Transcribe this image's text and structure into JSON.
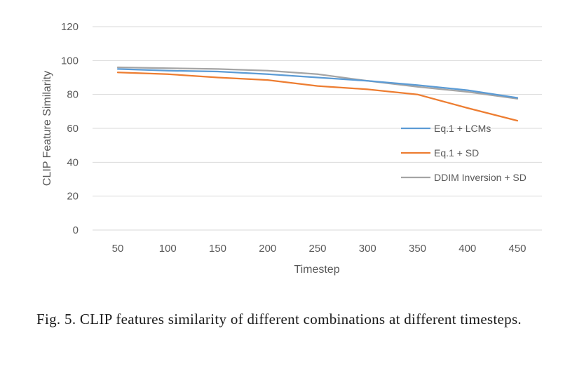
{
  "caption": "Fig. 5. CLIP features similarity of different combinations at different timesteps.",
  "chart_data": {
    "type": "line",
    "title": "",
    "xlabel": "Timestep",
    "ylabel": "CLIP Feature Similarity",
    "categories": [
      "50",
      "100",
      "150",
      "200",
      "250",
      "300",
      "350",
      "400",
      "450"
    ],
    "y_ticks": [
      "0",
      "20",
      "40",
      "60",
      "80",
      "100",
      "120"
    ],
    "ylim": [
      0,
      120
    ],
    "grid": "horizontal",
    "legend_position": "right",
    "series": [
      {
        "name": "Eq.1 + LCMs",
        "color": "#5B9BD5",
        "values": [
          95,
          94,
          93.5,
          92,
          90,
          88,
          85.5,
          82.5,
          78
        ]
      },
      {
        "name": "Eq.1 + SD",
        "color": "#ED7D31",
        "values": [
          93,
          92,
          90,
          88.5,
          85,
          83,
          80,
          72,
          64.5
        ]
      },
      {
        "name": "DDIM Inversion + SD",
        "color": "#A5A5A5",
        "values": [
          96,
          95.5,
          95,
          94,
          92,
          88,
          84.5,
          81.5,
          77.5
        ]
      }
    ]
  }
}
